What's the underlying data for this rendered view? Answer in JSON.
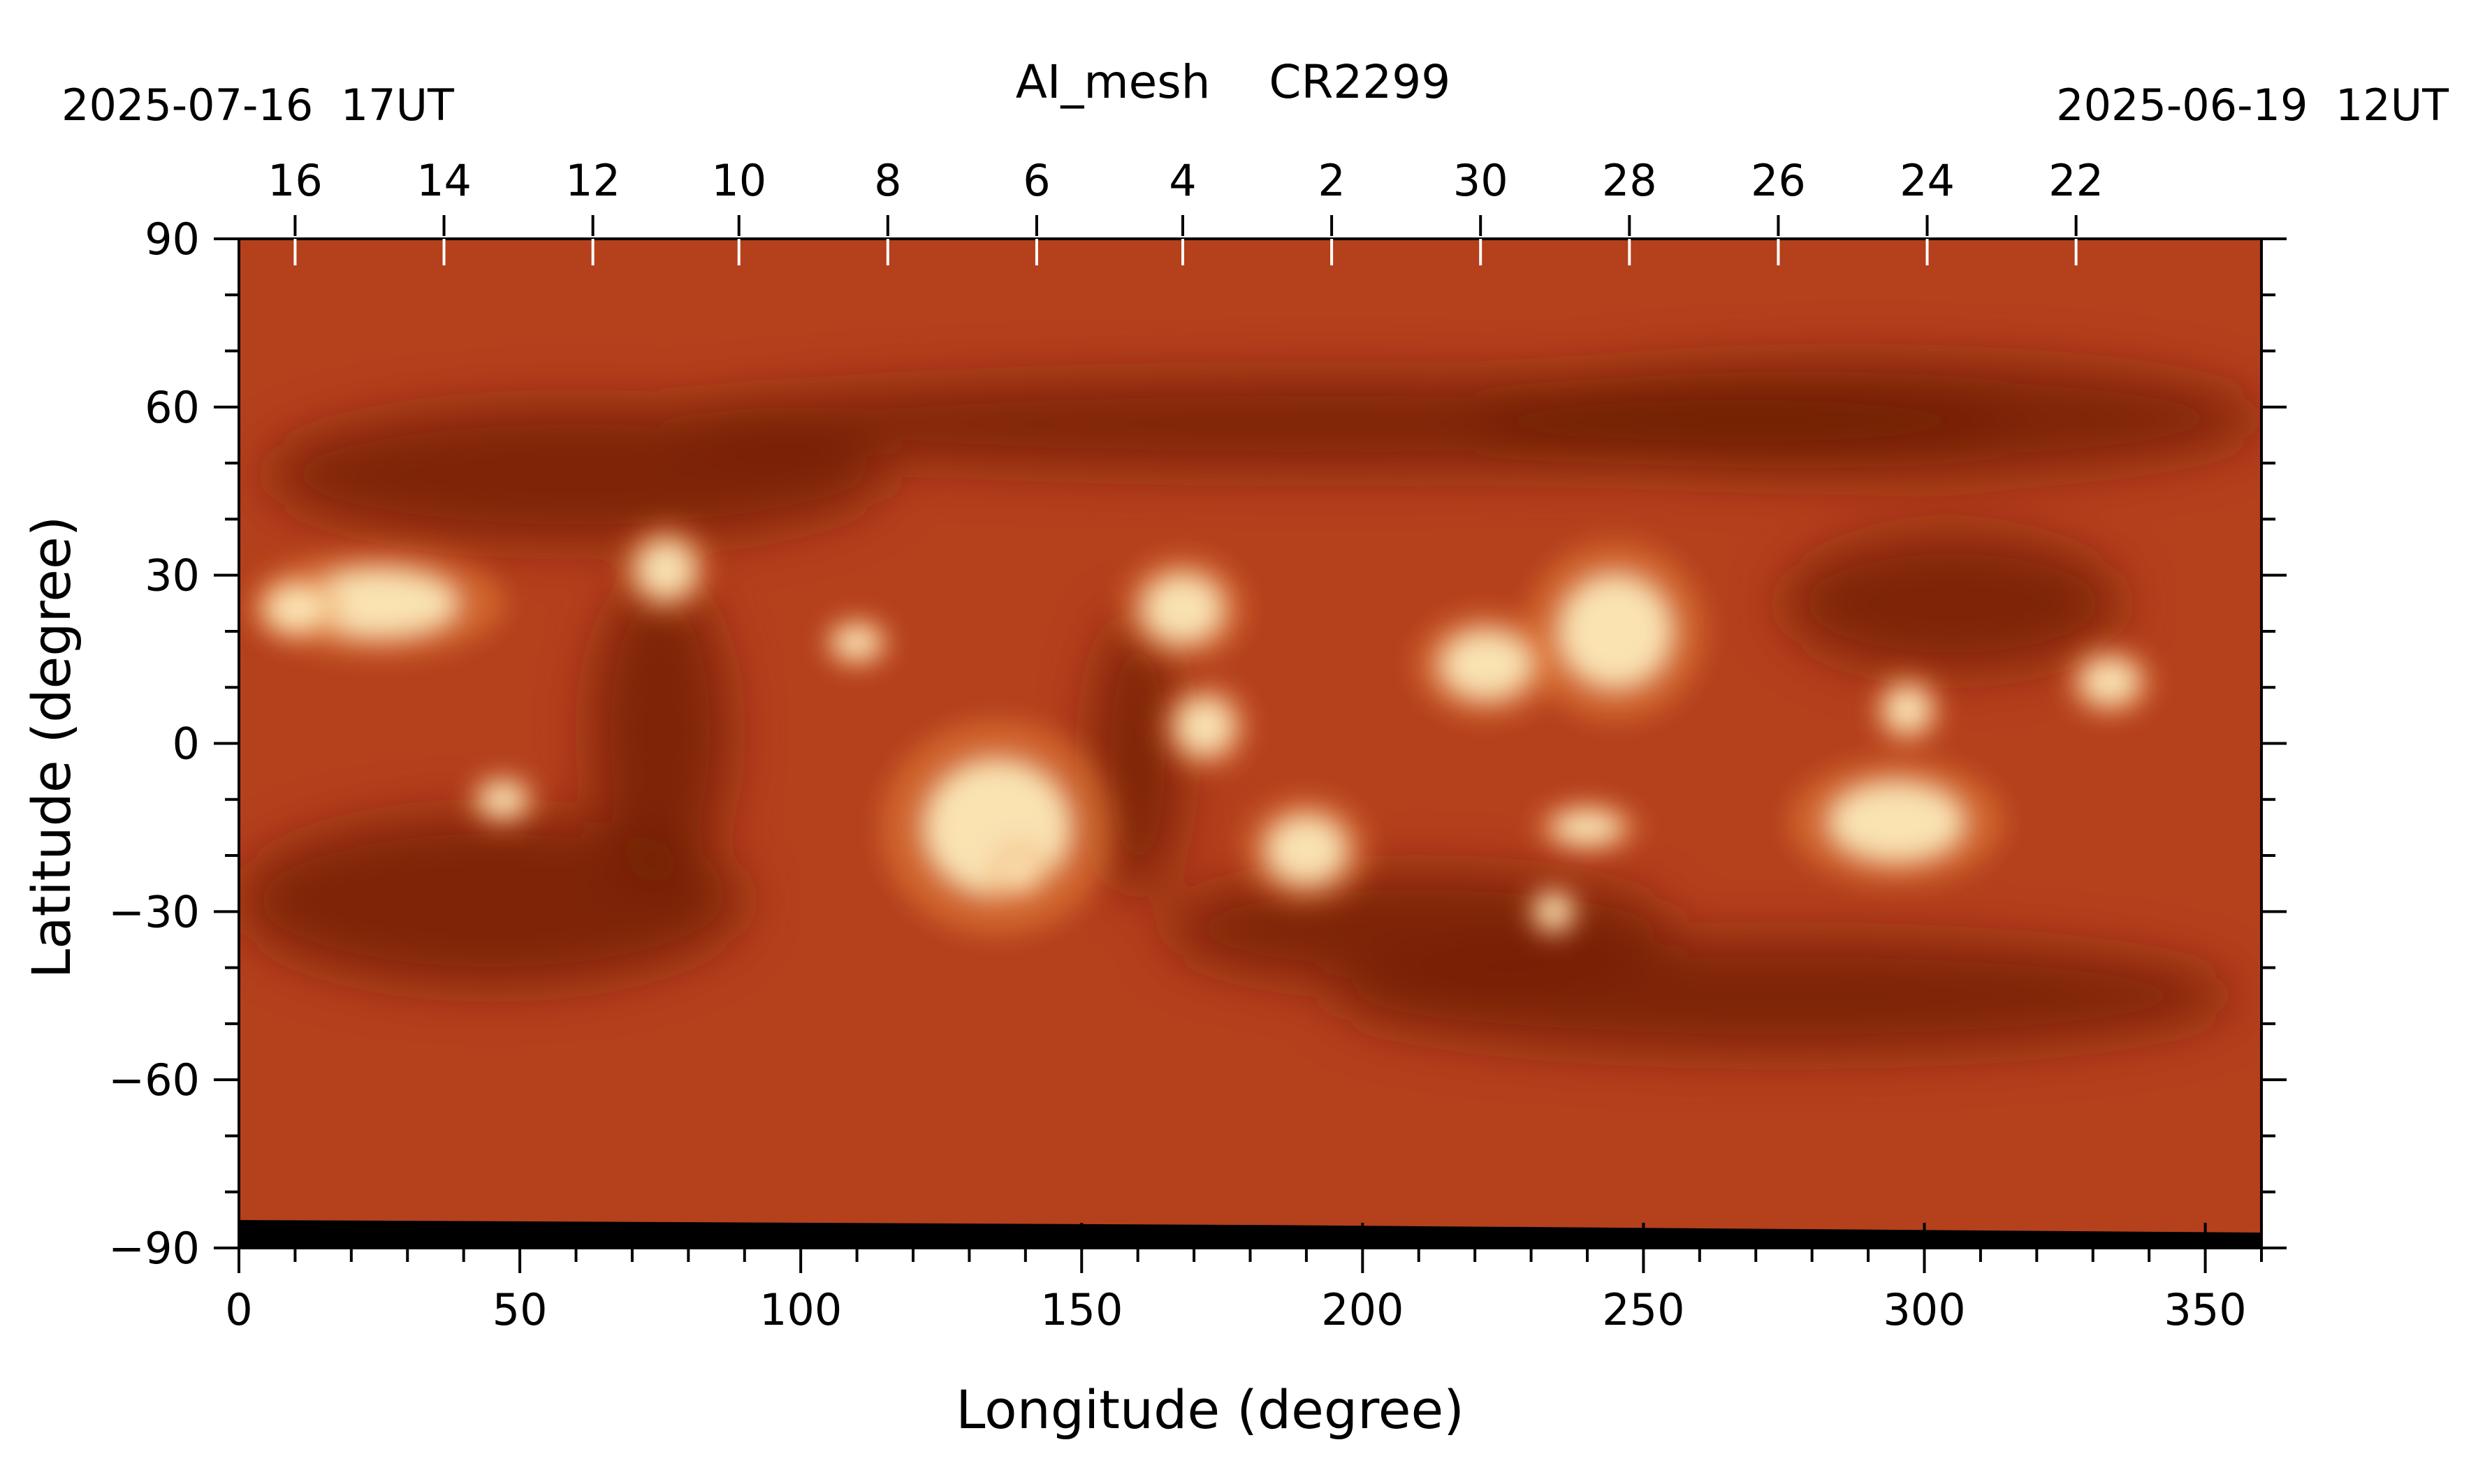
{
  "chart_data": {
    "type": "heatmap",
    "title": "AI_mesh    CR2299",
    "date_left": "2025-07-16  17UT",
    "date_right": "2025-06-19  12UT",
    "xlabel": "Longitude (degree)",
    "ylabel": "Latitude (degree)",
    "xlim": [
      0,
      360
    ],
    "ylim": [
      -90,
      90
    ],
    "x_ticks": [
      0,
      50,
      100,
      150,
      200,
      250,
      300,
      350
    ],
    "x_tick_labels": [
      "0",
      "50",
      "100",
      "150",
      "200",
      "250",
      "300",
      "350"
    ],
    "y_ticks": [
      90,
      60,
      30,
      0,
      -30,
      -60,
      -90
    ],
    "y_tick_labels": [
      "90",
      "60",
      "30",
      "0",
      "−30",
      "−60",
      "−90"
    ],
    "day_ticks": [
      {
        "label": "16",
        "longitude": 10
      },
      {
        "label": "14",
        "longitude": 36.5
      },
      {
        "label": "12",
        "longitude": 63
      },
      {
        "label": "10",
        "longitude": 89
      },
      {
        "label": "8",
        "longitude": 115.5
      },
      {
        "label": "6",
        "longitude": 142
      },
      {
        "label": "4",
        "longitude": 168
      },
      {
        "label": "2",
        "longitude": 194.5
      },
      {
        "label": "30",
        "longitude": 221
      },
      {
        "label": "28",
        "longitude": 247.5
      },
      {
        "label": "26",
        "longitude": 274
      },
      {
        "label": "24",
        "longitude": 300.5
      },
      {
        "label": "22",
        "longitude": 327
      }
    ],
    "colors": {
      "background": "#b4401c",
      "dark_region": "#6e1e06",
      "bright_region": "#fff0c0",
      "no_data": "#000000"
    },
    "dark_regions": [
      {
        "lon": 195,
        "lat": 57,
        "rlon": 120,
        "rlat": 8
      },
      {
        "lon": 60,
        "lat": 48,
        "rlon": 55,
        "rlat": 12
      },
      {
        "lon": 290,
        "lat": 58,
        "rlon": 70,
        "rlat": 10
      },
      {
        "lon": 305,
        "lat": 25,
        "rlon": 30,
        "rlat": 12
      },
      {
        "lon": 45,
        "lat": -28,
        "rlon": 45,
        "rlat": 15
      },
      {
        "lon": 75,
        "lat": 2,
        "rlon": 12,
        "rlat": 28
      },
      {
        "lon": 210,
        "lat": -33,
        "rlon": 45,
        "rlat": 10
      },
      {
        "lon": 160,
        "lat": -2,
        "rlon": 8,
        "rlat": 25
      },
      {
        "lon": 275,
        "lat": -45,
        "rlon": 80,
        "rlat": 10
      }
    ],
    "bright_regions": [
      {
        "lon": 25,
        "lat": 25,
        "rlon": 14,
        "rlat": 6
      },
      {
        "lon": 76,
        "lat": 31,
        "rlon": 5,
        "rlat": 5
      },
      {
        "lon": 168,
        "lat": 24,
        "rlon": 7,
        "rlat": 6
      },
      {
        "lon": 172,
        "lat": 3,
        "rlon": 5,
        "rlat": 5
      },
      {
        "lon": 222,
        "lat": 14,
        "rlon": 8,
        "rlat": 6
      },
      {
        "lon": 245,
        "lat": 20,
        "rlon": 10,
        "rlat": 10
      },
      {
        "lon": 135,
        "lat": -15,
        "rlon": 13,
        "rlat": 12
      },
      {
        "lon": 190,
        "lat": -19,
        "rlon": 7,
        "rlat": 6
      },
      {
        "lon": 295,
        "lat": -14,
        "rlon": 12,
        "rlat": 7
      },
      {
        "lon": 47,
        "lat": -10,
        "rlon": 4,
        "rlat": 3
      },
      {
        "lon": 110,
        "lat": 18,
        "rlon": 4,
        "rlat": 3
      },
      {
        "lon": 333,
        "lat": 11,
        "rlon": 5,
        "rlat": 4
      },
      {
        "lon": 297,
        "lat": 6,
        "rlon": 4,
        "rlat": 4
      },
      {
        "lon": 234,
        "lat": -30,
        "rlon": 3,
        "rlat": 3
      },
      {
        "lon": 240,
        "lat": -15,
        "rlon": 6,
        "rlat": 3
      },
      {
        "lon": 10,
        "lat": 24,
        "rlon": 5,
        "rlat": 4
      },
      {
        "lon": 139,
        "lat": -23,
        "rlon": 3,
        "rlat": 3
      }
    ]
  }
}
